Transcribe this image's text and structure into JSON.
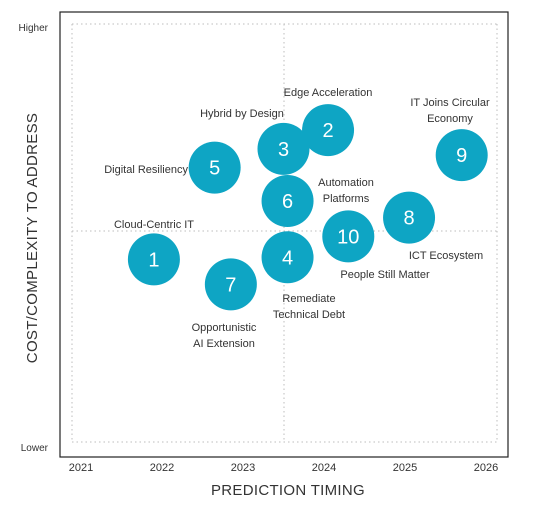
{
  "chart_data": {
    "type": "scatter",
    "xlabel": "PREDICTION TIMING",
    "ylabel": "COST/COMPLEXITY TO ADDRESS",
    "x_ticks": [
      "2021",
      "2022",
      "2023",
      "2024",
      "2025",
      "2026"
    ],
    "xlim": [
      2021,
      2026
    ],
    "y_extremes": {
      "high": "Higher",
      "low": "Lower"
    },
    "ylim": [
      0,
      10
    ],
    "grid": "dotted midlines",
    "color": "#0ea5c4",
    "points": [
      {
        "id": "1",
        "label": "Cloud-Centric IT",
        "x": 2021.9,
        "y": 4.5
      },
      {
        "id": "2",
        "label": "Edge Acceleration",
        "x": 2024.05,
        "y": 7.6
      },
      {
        "id": "3",
        "label": "Hybrid by Design",
        "x": 2023.5,
        "y": 7.15
      },
      {
        "id": "4",
        "label": "Remediate Technical Debt",
        "x": 2023.55,
        "y": 4.55
      },
      {
        "id": "5",
        "label": "Digital Resiliency",
        "x": 2022.65,
        "y": 6.7
      },
      {
        "id": "6",
        "label": "Automation Platforms",
        "x": 2023.55,
        "y": 5.9
      },
      {
        "id": "7",
        "label": "Opportunistic AI Extension",
        "x": 2022.85,
        "y": 3.9
      },
      {
        "id": "8",
        "label": "ICT Ecosystem",
        "x": 2025.05,
        "y": 5.5
      },
      {
        "id": "9",
        "label": "IT Joins Circular Economy",
        "x": 2025.7,
        "y": 7.0
      },
      {
        "id": "10",
        "label": "People Still Matter",
        "x": 2024.3,
        "y": 5.05
      }
    ]
  }
}
